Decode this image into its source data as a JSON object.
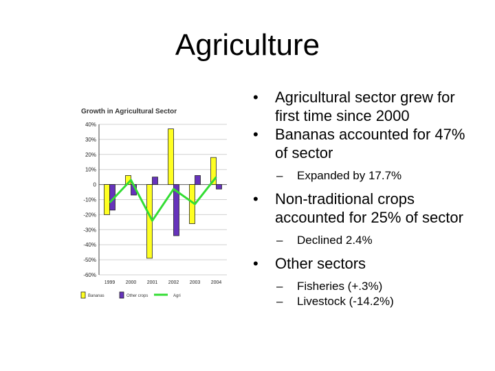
{
  "slide": {
    "title": "Agriculture"
  },
  "bullets": [
    {
      "text": "Agricultural sector grew for first time since 2000",
      "sub": []
    },
    {
      "text": "Bananas accounted for 47% of sector",
      "sub": [
        "Expanded by 17.7%"
      ]
    },
    {
      "text": "Non-traditional crops accounted for 25% of sector",
      "sub": [
        "Declined 2.4%"
      ]
    },
    {
      "text": "Other sectors",
      "sub": [
        "Fisheries (+.3%)",
        "Livestock (-14.2%)"
      ]
    }
  ],
  "bullet_glyph": "•",
  "sub_glyph": "–",
  "chart_data": {
    "type": "bar",
    "title": "Growth in Agricultural Sector",
    "categories": [
      "1999",
      "2000",
      "2001",
      "2002",
      "2003",
      "2004"
    ],
    "ylim": [
      -60,
      40
    ],
    "yticks": [
      40,
      30,
      20,
      10,
      0,
      -10,
      -20,
      -30,
      -40,
      -50,
      -60
    ],
    "ytick_labels": [
      "40%",
      "30%",
      "20%",
      "10%",
      "0",
      "-10%",
      "-20%",
      "-30%",
      "-40%",
      "-50%",
      "-60%"
    ],
    "grid": true,
    "legend_position": "bottom",
    "series": [
      {
        "name": "Bananas",
        "kind": "bar",
        "color": "#ffff22",
        "values": [
          -20,
          6,
          -49,
          37,
          -26,
          18
        ]
      },
      {
        "name": "Other crops",
        "kind": "bar",
        "color": "#6633bb",
        "values": [
          -17,
          -7,
          5,
          -34,
          6,
          -3
        ]
      },
      {
        "name": "Agri",
        "kind": "line",
        "color": "#33dd33",
        "values": [
          -12,
          3,
          -24,
          -3,
          -13,
          5
        ]
      }
    ]
  }
}
